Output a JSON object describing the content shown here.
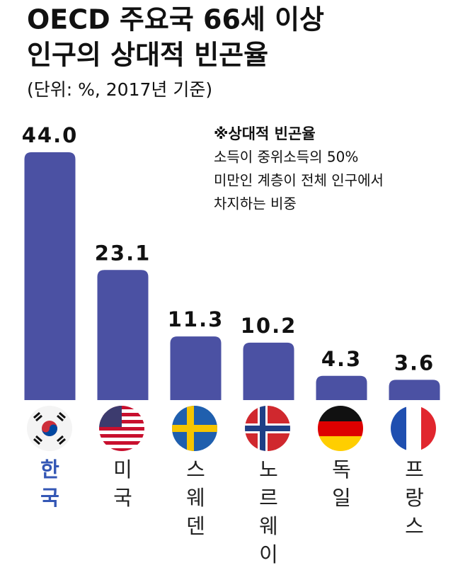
{
  "chart_data": {
    "type": "bar",
    "title": [
      "OECD 주요국 66세 이상",
      "인구의 상대적 빈곤율"
    ],
    "subtitle": "(단위: %, 2017년 기준)",
    "note_title": "※상대적 빈곤율",
    "note_lines": [
      "소득이 중위소득의 50%",
      "미만인 계층이 전체 인구에서",
      "차지하는 비중"
    ],
    "categories": [
      "한국",
      "미국",
      "스웨덴",
      "노르웨이",
      "독일",
      "프랑스"
    ],
    "values": [
      44.0,
      23.1,
      11.3,
      10.2,
      4.3,
      3.6
    ],
    "value_labels": [
      "44.0",
      "23.1",
      "11.3",
      "10.2",
      "4.3",
      "3.6"
    ],
    "color": "#4b51a3",
    "category_colors": [
      "#3457b5",
      "#222222",
      "#222222",
      "#222222",
      "#222222",
      "#222222"
    ]
  }
}
